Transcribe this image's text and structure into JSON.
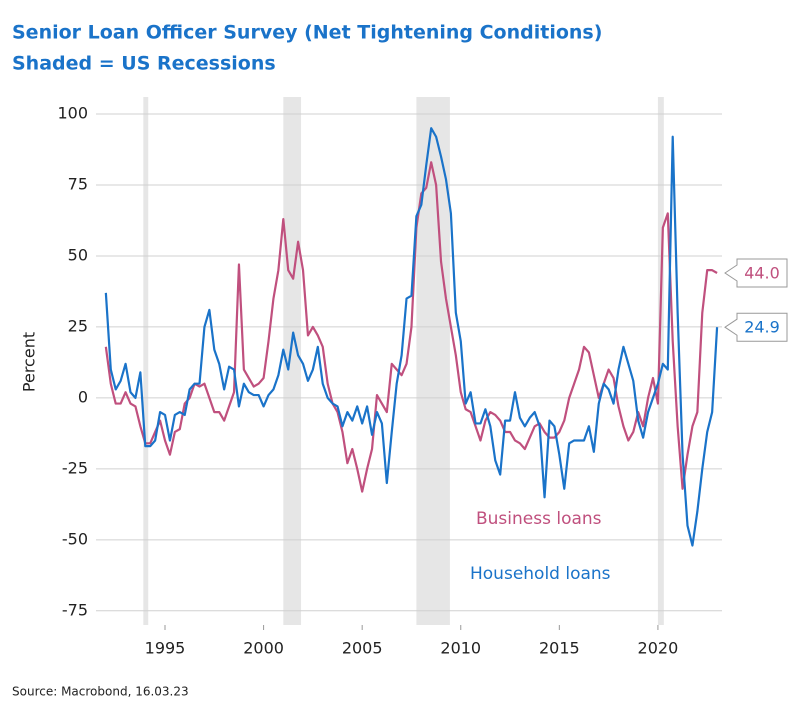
{
  "chart_data": {
    "type": "line",
    "title": "Senior Loan Officer Survey (Net Tightening Conditions)",
    "subtitle": "Shaded = US Recessions",
    "y_label": "Percent",
    "source": "Source: Macrobond, 16.03.23",
    "xlim": [
      1991.5,
      2023.25
    ],
    "xticks": [
      1995,
      2000,
      2005,
      2010,
      2015,
      2020
    ],
    "ylim": [
      -80,
      106
    ],
    "yticks": [
      -75,
      -50,
      -25,
      0,
      25,
      50,
      75,
      100
    ],
    "grid": true,
    "shaded": [
      [
        1993.9,
        1994.15
      ],
      [
        2001.0,
        2001.9
      ],
      [
        2007.75,
        2009.45
      ],
      [
        2020.0,
        2020.3
      ]
    ],
    "x": [
      1992,
      1992.25,
      1992.5,
      1992.75,
      1993,
      1993.25,
      1993.5,
      1993.75,
      1994,
      1994.25,
      1994.5,
      1994.75,
      1995,
      1995.25,
      1995.5,
      1995.75,
      1996,
      1996.25,
      1996.5,
      1996.75,
      1997,
      1997.25,
      1997.5,
      1997.75,
      1998,
      1998.25,
      1998.5,
      1998.75,
      1999,
      1999.25,
      1999.5,
      1999.75,
      2000,
      2000.25,
      2000.5,
      2000.75,
      2001,
      2001.25,
      2001.5,
      2001.75,
      2002,
      2002.25,
      2002.5,
      2002.75,
      2003,
      2003.25,
      2003.5,
      2003.75,
      2004,
      2004.25,
      2004.5,
      2004.75,
      2005,
      2005.25,
      2005.5,
      2005.75,
      2006,
      2006.25,
      2006.5,
      2006.75,
      2007,
      2007.25,
      2007.5,
      2007.75,
      2008,
      2008.25,
      2008.5,
      2008.75,
      2009,
      2009.25,
      2009.5,
      2009.75,
      2010,
      2010.25,
      2010.5,
      2010.75,
      2011,
      2011.25,
      2011.5,
      2011.75,
      2012,
      2012.25,
      2012.5,
      2012.75,
      2013,
      2013.25,
      2013.5,
      2013.75,
      2014,
      2014.25,
      2014.5,
      2014.75,
      2015,
      2015.25,
      2015.5,
      2015.75,
      2016,
      2016.25,
      2016.5,
      2016.75,
      2017,
      2017.25,
      2017.5,
      2017.75,
      2018,
      2018.25,
      2018.5,
      2018.75,
      2019,
      2019.25,
      2019.5,
      2019.75,
      2020,
      2020.25,
      2020.5,
      2020.75,
      2021,
      2021.25,
      2021.5,
      2021.75,
      2022,
      2022.25,
      2022.5,
      2022.75,
      2023
    ],
    "series": [
      {
        "name": "Business loans",
        "color": "#c0507e",
        "values": [
          18,
          5,
          -2,
          -2,
          2,
          -2,
          -3,
          -10,
          -16,
          -16,
          -12,
          -8,
          -15,
          -20,
          -12,
          -11,
          -2,
          0,
          5,
          4,
          5,
          0,
          -5,
          -5,
          -8,
          -3,
          2,
          47,
          10,
          7,
          4,
          5,
          7,
          20,
          35,
          45,
          63,
          45,
          42,
          55,
          45,
          22,
          25,
          22,
          18,
          5,
          -2,
          -5,
          -12,
          -23,
          -18,
          -25,
          -33,
          -25,
          -18,
          1,
          -2,
          -5,
          12,
          10,
          8,
          12,
          25,
          60,
          72,
          74,
          83,
          75,
          48,
          35,
          25,
          15,
          2,
          -4,
          -5,
          -10,
          -15,
          -8,
          -5,
          -6,
          -8,
          -12,
          -12,
          -15,
          -16,
          -18,
          -14,
          -10,
          -9,
          -12,
          -14,
          -14,
          -12,
          -8,
          0,
          5,
          10,
          18,
          16,
          8,
          0,
          5,
          10,
          7,
          -3,
          -10,
          -15,
          -12,
          -5,
          -10,
          0,
          7,
          -2,
          60,
          65,
          20,
          -10,
          -32,
          -20,
          -10,
          -5,
          30,
          45,
          45,
          44
        ],
        "value_labels": [
          null,
          null,
          null,
          null,
          null,
          null,
          null,
          null,
          null,
          null,
          null,
          null,
          null,
          null,
          null,
          null,
          null,
          null,
          null,
          null,
          null,
          null,
          null,
          null,
          null,
          null,
          null,
          null,
          null,
          null,
          null,
          null,
          null,
          null,
          null,
          null,
          null,
          null,
          null,
          null,
          null,
          null,
          null,
          null,
          null,
          null,
          null,
          null,
          null,
          null,
          null,
          null,
          null,
          null,
          null,
          null,
          null,
          null,
          null,
          null,
          null,
          null,
          null,
          null,
          null,
          null,
          null,
          null,
          null,
          null,
          null,
          null,
          null,
          null,
          null,
          null,
          null,
          null,
          null,
          null,
          null,
          null,
          null,
          null,
          null,
          null,
          null,
          null,
          null,
          null,
          null,
          null,
          null,
          null,
          null,
          null,
          null,
          null,
          null,
          null,
          null,
          null,
          null,
          null,
          null,
          null,
          null,
          null,
          null,
          null,
          null,
          null,
          null,
          null,
          null,
          null,
          null,
          null,
          null,
          null,
          null,
          null,
          null,
          null,
          "44.0"
        ]
      },
      {
        "name": "Household loans",
        "color": "#1a73c9",
        "values": [
          37,
          10,
          3,
          6,
          12,
          2,
          0,
          9,
          -17,
          -17,
          -15,
          -5,
          -6,
          -15,
          -6,
          -5,
          -6,
          3,
          5,
          5,
          25,
          31,
          17,
          12,
          3,
          11,
          10,
          -3,
          5,
          2,
          1,
          1,
          -3,
          1,
          3,
          8,
          17,
          10,
          23,
          15,
          12,
          6,
          10,
          18,
          5,
          0,
          -2,
          -3,
          -10,
          -5,
          -8,
          -3,
          -9,
          -3,
          -13,
          -5,
          -9,
          -30,
          -12,
          5,
          15,
          35,
          36,
          64,
          68,
          82,
          95,
          92,
          85,
          77,
          65,
          30,
          20,
          -2,
          2,
          -9,
          -9,
          -4,
          -10,
          -22,
          -27,
          -8,
          -8,
          2,
          -7,
          -10,
          -7,
          -5,
          -10,
          -35,
          -8,
          -10,
          -20,
          -32,
          -16,
          -15,
          -15,
          -15,
          -10,
          -19,
          -2,
          5,
          3,
          -2,
          10,
          18,
          12,
          6,
          -8,
          -14,
          -5,
          0,
          5,
          12,
          10,
          92,
          30,
          -20,
          -45,
          -52,
          -40,
          -25,
          -12,
          -5,
          24.9
        ],
        "value_labels": [
          null,
          null,
          null,
          null,
          null,
          null,
          null,
          null,
          null,
          null,
          null,
          null,
          null,
          null,
          null,
          null,
          null,
          null,
          null,
          null,
          null,
          null,
          null,
          null,
          null,
          null,
          null,
          null,
          null,
          null,
          null,
          null,
          null,
          null,
          null,
          null,
          null,
          null,
          null,
          null,
          null,
          null,
          null,
          null,
          null,
          null,
          null,
          null,
          null,
          null,
          null,
          null,
          null,
          null,
          null,
          null,
          null,
          null,
          null,
          null,
          null,
          null,
          null,
          null,
          null,
          null,
          null,
          null,
          null,
          null,
          null,
          null,
          null,
          null,
          null,
          null,
          null,
          null,
          null,
          null,
          null,
          null,
          null,
          null,
          null,
          null,
          null,
          null,
          null,
          null,
          null,
          null,
          null,
          null,
          null,
          null,
          null,
          null,
          null,
          null,
          null,
          null,
          null,
          null,
          null,
          null,
          null,
          null,
          null,
          null,
          null,
          null,
          null,
          null,
          null,
          null,
          null,
          null,
          null,
          null,
          null,
          null,
          null,
          null,
          "24.9"
        ]
      }
    ]
  }
}
